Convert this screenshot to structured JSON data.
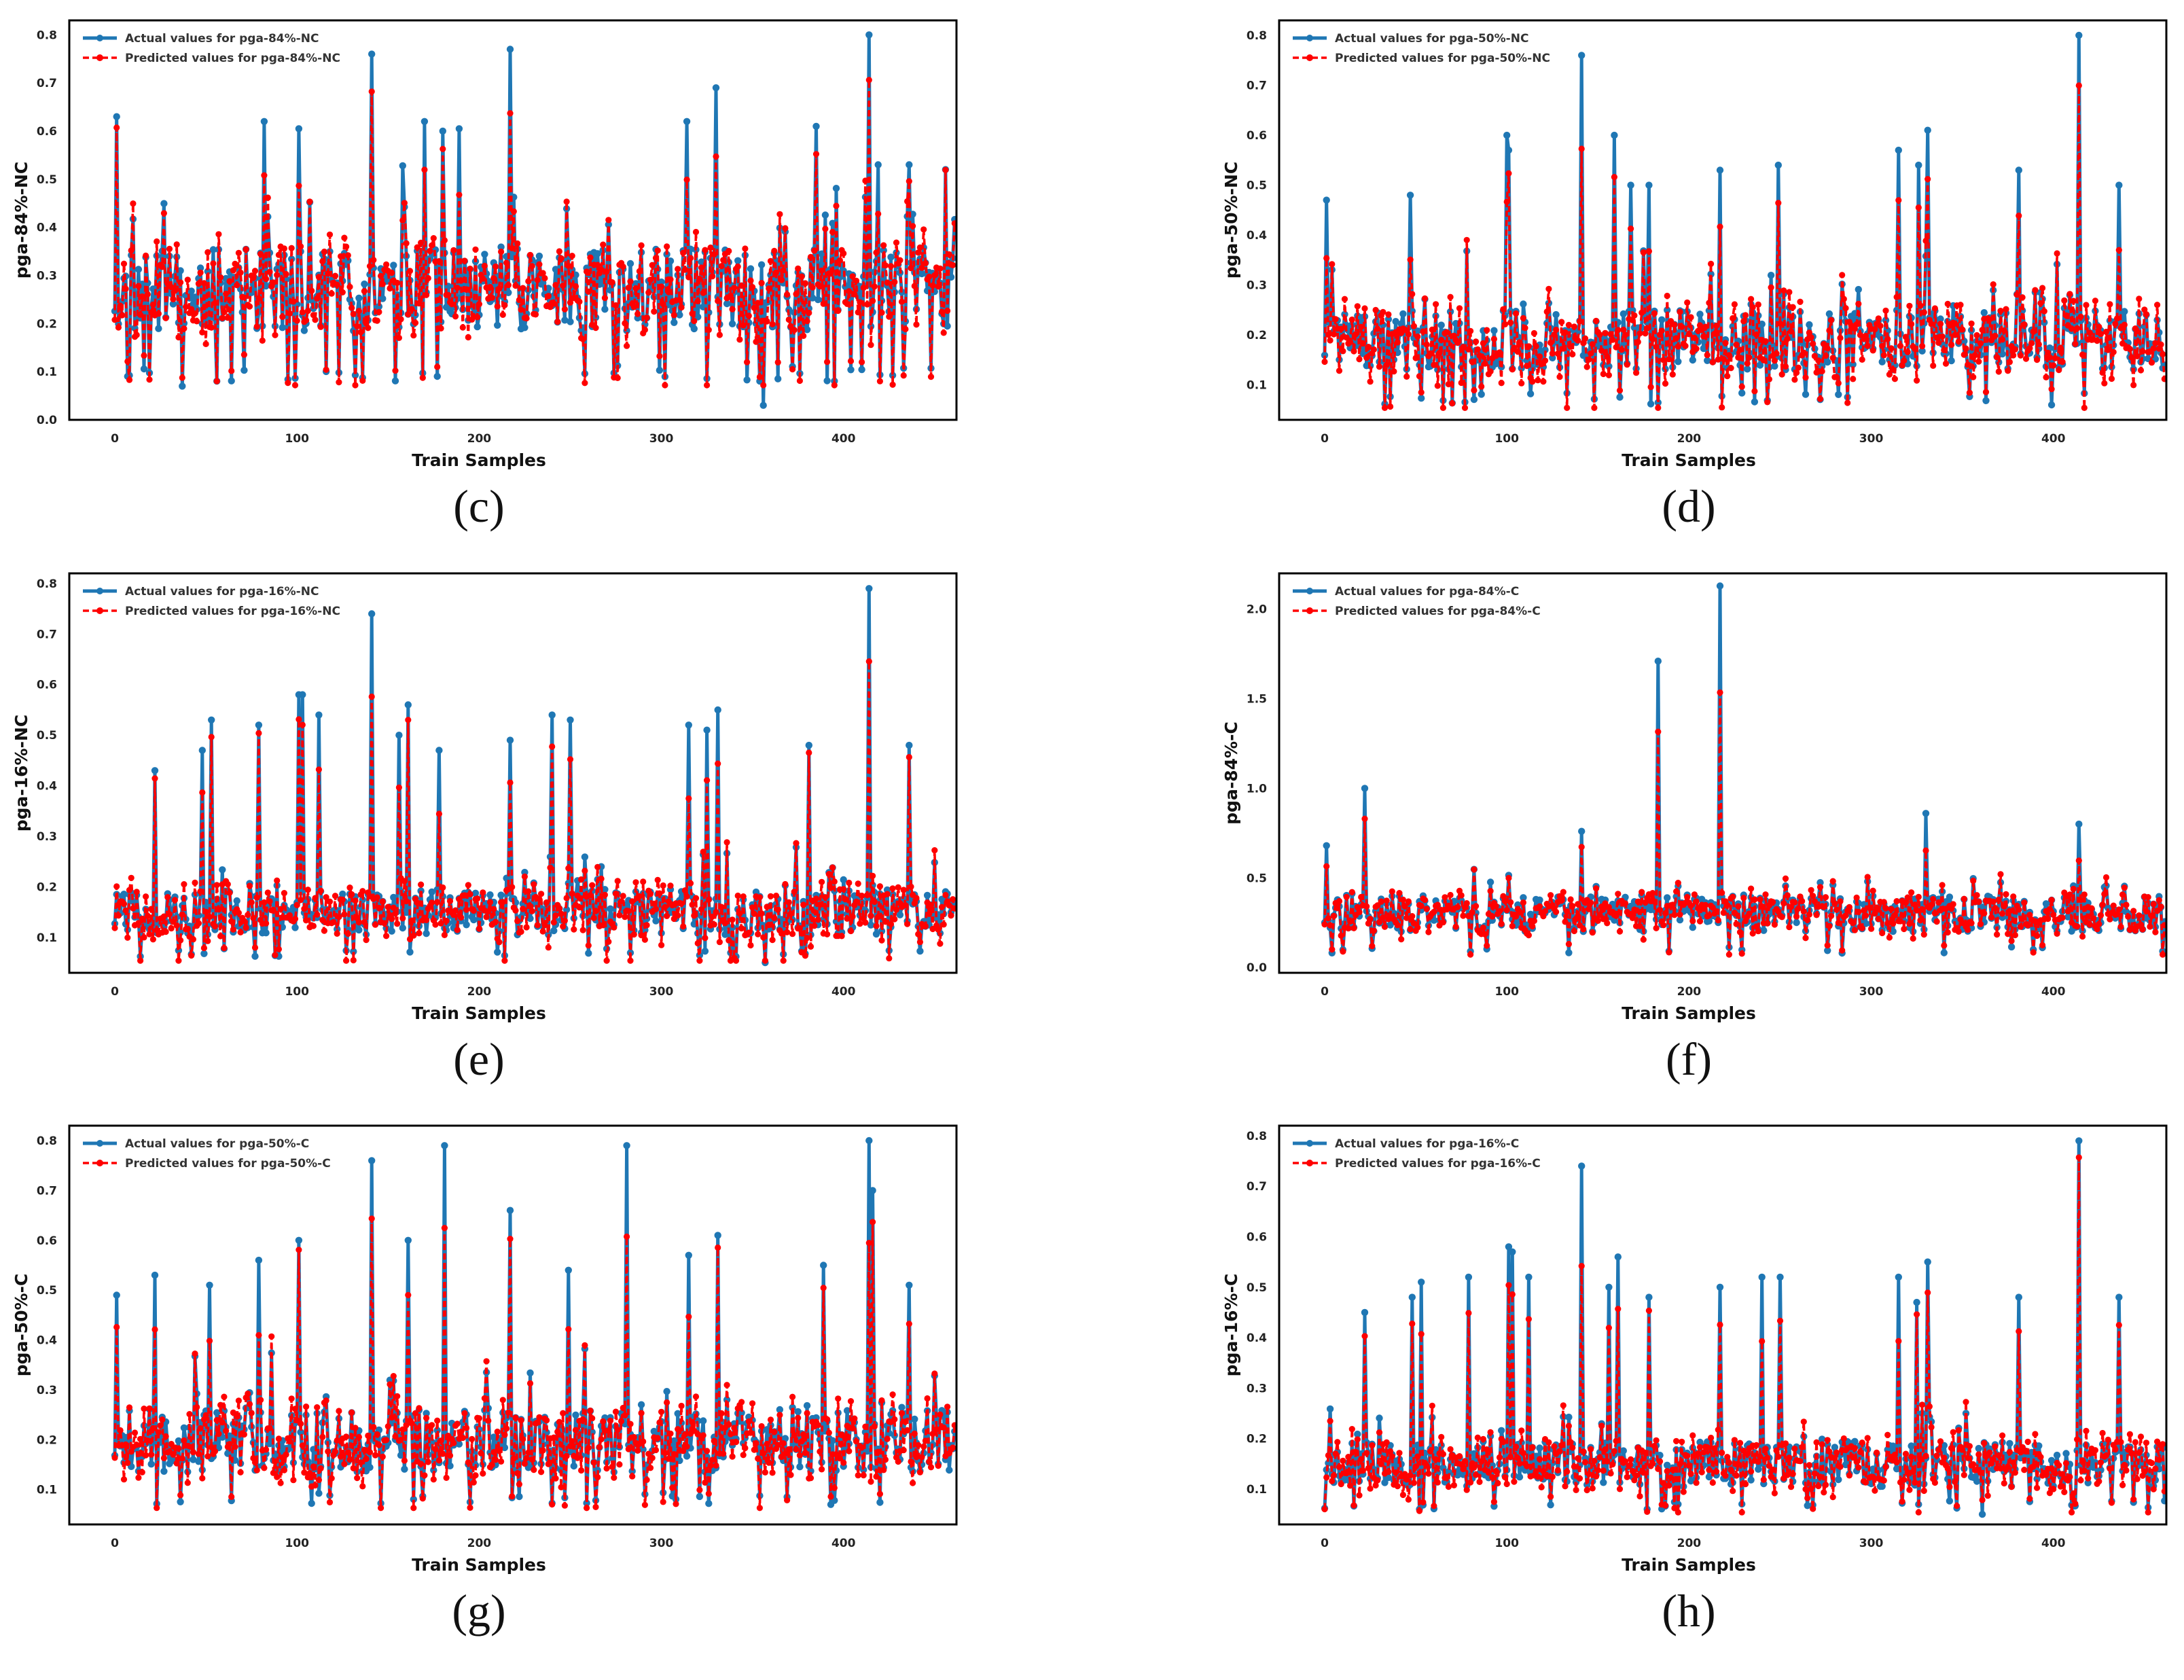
{
  "figure": {
    "xlabel": "Train Samples",
    "colors": {
      "actual": "#1f77b4",
      "predicted": "#ff0000",
      "frame": "#000000"
    }
  },
  "chart_data": [
    {
      "id": "c",
      "caption": "(c)",
      "type": "line",
      "ylabel": "pga-84%-NC",
      "xlabel": "Train Samples",
      "xlim": [
        -25,
        462
      ],
      "ylim": [
        0.0,
        0.83
      ],
      "xticks": [
        0,
        100,
        200,
        300,
        400
      ],
      "yticks": [
        0.0,
        0.1,
        0.2,
        0.3,
        0.4,
        0.5,
        0.6,
        0.7,
        0.8
      ],
      "ytick_labels": [
        "0.0",
        "0.1",
        "0.2",
        "0.3",
        "0.4",
        "0.5",
        "0.6",
        "0.7",
        "0.8"
      ],
      "n_samples": 462,
      "base": 0.27,
      "noise": 0.085,
      "vmin": 0.08,
      "seed": 11,
      "pred_seed": 101,
      "pred_noise": 0.04,
      "peaks": [
        [
          1,
          0.63
        ],
        [
          82,
          0.62
        ],
        [
          101,
          0.605
        ],
        [
          141,
          0.76
        ],
        [
          170,
          0.62
        ],
        [
          180,
          0.6
        ],
        [
          189,
          0.605
        ],
        [
          217,
          0.77
        ],
        [
          314,
          0.62
        ],
        [
          330,
          0.69
        ],
        [
          385,
          0.61
        ],
        [
          414,
          0.8
        ],
        [
          419,
          0.53
        ],
        [
          436,
          0.53
        ],
        [
          456,
          0.52
        ]
      ],
      "dips": [
        [
          356,
          0.03
        ],
        [
          37,
          0.07
        ]
      ],
      "series": [
        {
          "name": "Actual values for pga-84%-NC",
          "style": "solid",
          "color": "#1f77b4"
        },
        {
          "name": "Predicted values for pga-84%-NC",
          "style": "dashed",
          "color": "#ff0000"
        }
      ]
    },
    {
      "id": "d",
      "caption": "(d)",
      "type": "line",
      "ylabel": "pga-50%-NC",
      "xlabel": "Train Samples",
      "xlim": [
        -25,
        462
      ],
      "ylim": [
        0.03,
        0.83
      ],
      "xticks": [
        0,
        100,
        200,
        300,
        400
      ],
      "yticks": [
        0.1,
        0.2,
        0.3,
        0.4,
        0.5,
        0.6,
        0.7,
        0.8
      ],
      "ytick_labels": [
        "0.1",
        "0.2",
        "0.3",
        "0.4",
        "0.5",
        "0.6",
        "0.7",
        "0.8"
      ],
      "n_samples": 462,
      "base": 0.19,
      "noise": 0.06,
      "vmin": 0.06,
      "seed": 22,
      "pred_seed": 202,
      "pred_noise": 0.035,
      "peaks": [
        [
          1,
          0.47
        ],
        [
          47,
          0.48
        ],
        [
          100,
          0.6
        ],
        [
          101,
          0.57
        ],
        [
          141,
          0.76
        ],
        [
          159,
          0.6
        ],
        [
          168,
          0.5
        ],
        [
          178,
          0.5
        ],
        [
          217,
          0.53
        ],
        [
          249,
          0.54
        ],
        [
          315,
          0.57
        ],
        [
          326,
          0.54
        ],
        [
          331,
          0.61
        ],
        [
          381,
          0.53
        ],
        [
          414,
          0.8
        ],
        [
          436,
          0.5
        ]
      ],
      "dips": [
        [
          399,
          0.06
        ]
      ],
      "series": [
        {
          "name": "Actual values for pga-50%-NC",
          "style": "solid",
          "color": "#1f77b4"
        },
        {
          "name": "Predicted values for pga-50%-NC",
          "style": "dashed",
          "color": "#ff0000"
        }
      ]
    },
    {
      "id": "e",
      "caption": "(e)",
      "type": "line",
      "ylabel": "pga-16%-NC",
      "xlabel": "Train Samples",
      "xlim": [
        -25,
        462
      ],
      "ylim": [
        0.03,
        0.82
      ],
      "xticks": [
        0,
        100,
        200,
        300,
        400
      ],
      "yticks": [
        0.1,
        0.2,
        0.3,
        0.4,
        0.5,
        0.6,
        0.7,
        0.8
      ],
      "ytick_labels": [
        "0.1",
        "0.2",
        "0.3",
        "0.4",
        "0.5",
        "0.6",
        "0.7",
        "0.8"
      ],
      "n_samples": 462,
      "base": 0.15,
      "noise": 0.045,
      "vmin": 0.06,
      "seed": 33,
      "pred_seed": 303,
      "pred_noise": 0.03,
      "peaks": [
        [
          22,
          0.43
        ],
        [
          48,
          0.47
        ],
        [
          53,
          0.53
        ],
        [
          79,
          0.52
        ],
        [
          101,
          0.58
        ],
        [
          103,
          0.58
        ],
        [
          112,
          0.54
        ],
        [
          141,
          0.74
        ],
        [
          156,
          0.5
        ],
        [
          161,
          0.56
        ],
        [
          178,
          0.47
        ],
        [
          217,
          0.49
        ],
        [
          240,
          0.54
        ],
        [
          250,
          0.53
        ],
        [
          315,
          0.52
        ],
        [
          325,
          0.51
        ],
        [
          331,
          0.55
        ],
        [
          381,
          0.48
        ],
        [
          414,
          0.79
        ],
        [
          436,
          0.48
        ]
      ],
      "dips": [
        [
          357,
          0.05
        ]
      ],
      "series": [
        {
          "name": "Actual values for pga-16%-NC",
          "style": "solid",
          "color": "#1f77b4"
        },
        {
          "name": "Predicted values for pga-16%-NC",
          "style": "dashed",
          "color": "#ff0000"
        }
      ]
    },
    {
      "id": "f",
      "caption": "(f)",
      "type": "line",
      "ylabel": "pga-84%-C",
      "xlabel": "Train Samples",
      "xlim": [
        -25,
        462
      ],
      "ylim": [
        -0.03,
        2.2
      ],
      "xticks": [
        0,
        100,
        200,
        300,
        400
      ],
      "yticks": [
        0.0,
        0.5,
        1.0,
        1.5,
        2.0
      ],
      "ytick_labels": [
        "0.0",
        "0.5",
        "1.0",
        "1.5",
        "2.0"
      ],
      "n_samples": 462,
      "base": 0.3,
      "noise": 0.1,
      "vmin": 0.08,
      "seed": 44,
      "pred_seed": 404,
      "pred_noise": 0.05,
      "peaks": [
        [
          1,
          0.68
        ],
        [
          22,
          1.0
        ],
        [
          141,
          0.76
        ],
        [
          183,
          1.71
        ],
        [
          217,
          2.13
        ],
        [
          330,
          0.86
        ],
        [
          414,
          0.8
        ]
      ],
      "dips": [],
      "series": [
        {
          "name": "Actual values for pga-84%-C",
          "style": "solid",
          "color": "#1f77b4"
        },
        {
          "name": "Predicted values for pga-84%-C",
          "style": "dashed",
          "color": "#ff0000"
        }
      ]
    },
    {
      "id": "g",
      "caption": "(g)",
      "type": "line",
      "ylabel": "pga-50%-C",
      "xlabel": "Train Samples",
      "xlim": [
        -25,
        462
      ],
      "ylim": [
        0.03,
        0.83
      ],
      "xticks": [
        0,
        100,
        200,
        300,
        400
      ],
      "yticks": [
        0.1,
        0.2,
        0.3,
        0.4,
        0.5,
        0.6,
        0.7,
        0.8
      ],
      "ytick_labels": [
        "0.1",
        "0.2",
        "0.3",
        "0.4",
        "0.5",
        "0.6",
        "0.7",
        "0.8"
      ],
      "n_samples": 462,
      "base": 0.2,
      "noise": 0.065,
      "vmin": 0.07,
      "seed": 55,
      "pred_seed": 505,
      "pred_noise": 0.035,
      "peaks": [
        [
          1,
          0.49
        ],
        [
          22,
          0.53
        ],
        [
          52,
          0.51
        ],
        [
          79,
          0.56
        ],
        [
          101,
          0.6
        ],
        [
          141,
          0.76
        ],
        [
          161,
          0.6
        ],
        [
          181,
          0.79
        ],
        [
          217,
          0.66
        ],
        [
          249,
          0.54
        ],
        [
          281,
          0.79
        ],
        [
          315,
          0.57
        ],
        [
          331,
          0.61
        ],
        [
          389,
          0.55
        ],
        [
          414,
          0.8
        ],
        [
          416,
          0.7
        ],
        [
          436,
          0.51
        ]
      ],
      "dips": [
        [
          393,
          0.07
        ]
      ],
      "series": [
        {
          "name": "Actual values for pga-50%-C",
          "style": "solid",
          "color": "#1f77b4"
        },
        {
          "name": "Predicted values for pga-50%-C",
          "style": "dashed",
          "color": "#ff0000"
        }
      ]
    },
    {
      "id": "h",
      "caption": "(h)",
      "type": "line",
      "ylabel": "pga-16%-C",
      "xlabel": "Train Samples",
      "xlim": [
        -25,
        462
      ],
      "ylim": [
        0.03,
        0.82
      ],
      "xticks": [
        0,
        100,
        200,
        300,
        400
      ],
      "yticks": [
        0.1,
        0.2,
        0.3,
        0.4,
        0.5,
        0.6,
        0.7,
        0.8
      ],
      "ytick_labels": [
        "0.1",
        "0.2",
        "0.3",
        "0.4",
        "0.5",
        "0.6",
        "0.7",
        "0.8"
      ],
      "n_samples": 462,
      "base": 0.15,
      "noise": 0.045,
      "vmin": 0.06,
      "seed": 66,
      "pred_seed": 606,
      "pred_noise": 0.03,
      "peaks": [
        [
          22,
          0.45
        ],
        [
          48,
          0.48
        ],
        [
          53,
          0.51
        ],
        [
          79,
          0.52
        ],
        [
          101,
          0.58
        ],
        [
          103,
          0.57
        ],
        [
          112,
          0.52
        ],
        [
          141,
          0.74
        ],
        [
          156,
          0.5
        ],
        [
          161,
          0.56
        ],
        [
          178,
          0.48
        ],
        [
          217,
          0.5
        ],
        [
          240,
          0.52
        ],
        [
          250,
          0.52
        ],
        [
          315,
          0.52
        ],
        [
          325,
          0.47
        ],
        [
          331,
          0.55
        ],
        [
          381,
          0.48
        ],
        [
          414,
          0.79
        ],
        [
          436,
          0.48
        ]
      ],
      "dips": [
        [
          361,
          0.05
        ]
      ],
      "series": [
        {
          "name": "Actual values for pga-16%-C",
          "style": "solid",
          "color": "#1f77b4"
        },
        {
          "name": "Predicted values for pga-16%-C",
          "style": "dashed",
          "color": "#ff0000"
        }
      ]
    }
  ]
}
